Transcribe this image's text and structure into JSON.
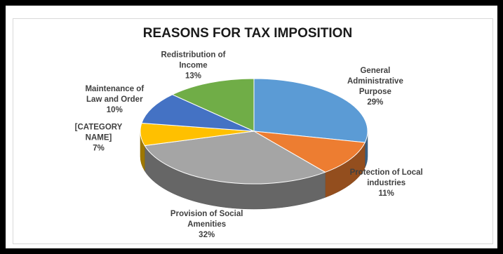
{
  "chart_data": {
    "type": "pie",
    "title": "REASONS FOR TAX IMPOSITION",
    "slices": [
      {
        "name": "General Administrative Purpose",
        "lines": [
          "General",
          "Administrative",
          "Purpose"
        ],
        "value": 29,
        "pct": "29%",
        "color": "#5b9bd5"
      },
      {
        "name": "Protection of Local industries",
        "lines": [
          "Protection of Local",
          "industries"
        ],
        "value": 11,
        "pct": "11%",
        "color": "#ed7d31"
      },
      {
        "name": "Provision of Social Amenities",
        "lines": [
          "Provision of Social",
          "Amenities"
        ],
        "value": 32,
        "pct": "32%",
        "color": "#a5a5a5"
      },
      {
        "name": "[CATEGORY NAME]",
        "lines": [
          "[CATEGORY",
          "NAME]"
        ],
        "value": 7,
        "pct": "7%",
        "color": "#ffc000"
      },
      {
        "name": "Maintenance of Law and Order",
        "lines": [
          "Maintenance of",
          "Law and Order"
        ],
        "value": 10,
        "pct": "10%",
        "color": "#4472c4"
      },
      {
        "name": "Redistribution of Income",
        "lines": [
          "Redistribution of",
          "Income"
        ],
        "value": 13,
        "pct": "13%",
        "color": "#70ad47"
      }
    ]
  }
}
